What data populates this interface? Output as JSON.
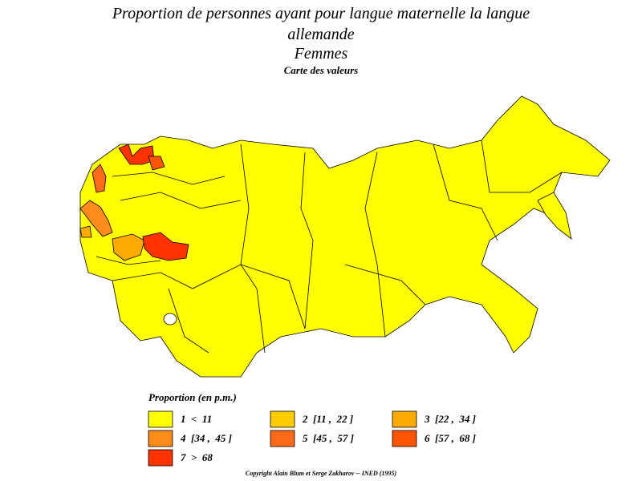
{
  "header": {
    "title": "Proportion de personnes ayant pour langue maternelle la langue allemande",
    "subtitle": "Femmes",
    "caption": "Carte des valeurs"
  },
  "legend": {
    "title": "Proportion (en p.m.)",
    "items": [
      {
        "label": "1  <  11",
        "color": "#ffff00"
      },
      {
        "label": "2  [11 ,  22 ]",
        "color": "#ffcc00"
      },
      {
        "label": "3  [22 ,  34 ]",
        "color": "#ffaa00"
      },
      {
        "label": "4  [34 ,  45 ]",
        "color": "#ff8c1a"
      },
      {
        "label": "5  [45 ,  57 ]",
        "color": "#ff6a1a"
      },
      {
        "label": "6  [57 ,  68 ]",
        "color": "#ff5500"
      },
      {
        "label": "7  >  68",
        "color": "#ff3300"
      }
    ]
  },
  "footer": {
    "copyright": "Copyright Alain Blum et Serge Zakharov  --  INED (1995)"
  }
}
